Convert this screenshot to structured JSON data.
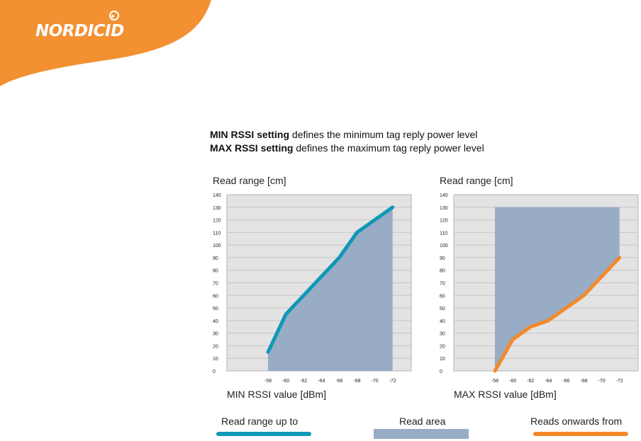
{
  "brand": {
    "name": "NORDICID"
  },
  "intro": {
    "line1_bold": "MIN RSSI setting",
    "line1_rest": " defines the minimum tag reply power level",
    "line2_bold": "MAX RSSI setting",
    "line2_rest": " defines the maximum tag reply power level"
  },
  "colors": {
    "brand_orange": "#f39031",
    "teal": "#0e98b6",
    "orange": "#f4892a",
    "area": "#99acc6",
    "plot_bg": "#e3e3e3",
    "grid": "#c6c6c6"
  },
  "legend": {
    "line_label": "Read range up to",
    "area_label": "Read area",
    "orange_label": "Reads onwards from"
  },
  "chart_data": [
    {
      "type": "area",
      "ylabel": "Read range [cm]",
      "xlabel": "MIN RSSI value [dBm]",
      "ylim": [
        0,
        140
      ],
      "yticks": [
        0,
        10,
        20,
        30,
        40,
        50,
        60,
        70,
        80,
        90,
        100,
        110,
        120,
        130,
        140
      ],
      "xticks": [
        -58,
        -60,
        -62,
        -64,
        -66,
        -68,
        -70,
        -72
      ],
      "grid": true,
      "fill": "under",
      "series": [
        {
          "x": [
            -58,
            -60,
            -62,
            -64,
            -66,
            -68,
            -70,
            -72
          ],
          "y": [
            15,
            45,
            60,
            75,
            90,
            110,
            120,
            130
          ]
        }
      ]
    },
    {
      "type": "area",
      "ylabel": "Read range [cm]",
      "xlabel": "MAX RSSI value [dBm]",
      "ylim": [
        0,
        140
      ],
      "yticks": [
        0,
        10,
        20,
        30,
        40,
        50,
        60,
        70,
        80,
        90,
        100,
        110,
        120,
        130,
        140
      ],
      "xticks": [
        -58,
        -60,
        -62,
        -64,
        -66,
        -68,
        -70,
        -72
      ],
      "grid": true,
      "fill": "above",
      "fill_top": 130,
      "series": [
        {
          "x": [
            -58,
            -60,
            -62,
            -64,
            -66,
            -68,
            -70,
            -72
          ],
          "y": [
            0,
            25,
            35,
            40,
            50,
            60,
            75,
            90
          ]
        }
      ]
    }
  ]
}
